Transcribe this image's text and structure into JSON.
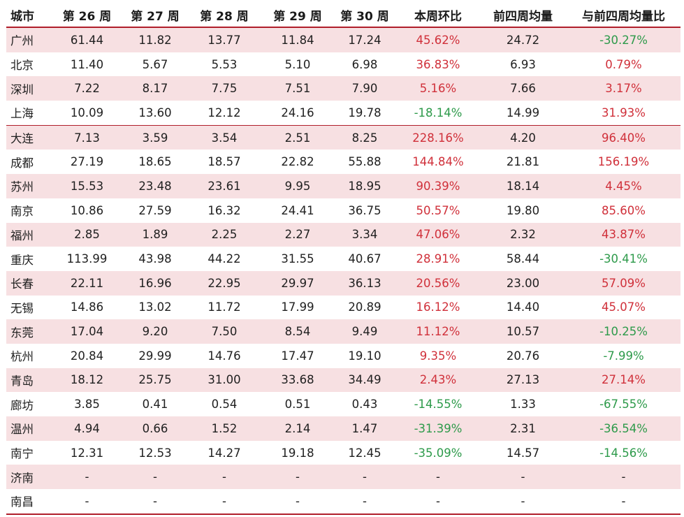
{
  "headers": [
    "城市",
    "第 26 周",
    "第 27 周",
    "第 28 周",
    "第 29 周",
    "第 30 周",
    "本周环比",
    "前四周均量",
    "与前四周均量比"
  ],
  "colors": {
    "positive": "#d0303a",
    "negative": "#2d9a4a",
    "shade": "#f7e0e2",
    "rule": "#b01e2a"
  },
  "rows": [
    [
      "广州",
      "61.44",
      "11.82",
      "13.77",
      "11.84",
      "17.24",
      "45.62%",
      "24.72",
      "-30.27%"
    ],
    [
      "北京",
      "11.40",
      "5.67",
      "5.53",
      "5.10",
      "6.98",
      "36.83%",
      "6.93",
      "0.79%"
    ],
    [
      "深圳",
      "7.22",
      "8.17",
      "7.75",
      "7.51",
      "7.90",
      "5.16%",
      "7.66",
      "3.17%"
    ],
    [
      "上海",
      "10.09",
      "13.60",
      "12.12",
      "24.16",
      "19.78",
      "-18.14%",
      "14.99",
      "31.93%"
    ],
    [
      "大连",
      "7.13",
      "3.59",
      "3.54",
      "2.51",
      "8.25",
      "228.16%",
      "4.20",
      "96.40%"
    ],
    [
      "成都",
      "27.19",
      "18.65",
      "18.57",
      "22.82",
      "55.88",
      "144.84%",
      "21.81",
      "156.19%"
    ],
    [
      "苏州",
      "15.53",
      "23.48",
      "23.61",
      "9.95",
      "18.95",
      "90.39%",
      "18.14",
      "4.45%"
    ],
    [
      "南京",
      "10.86",
      "27.59",
      "16.32",
      "24.41",
      "36.75",
      "50.57%",
      "19.80",
      "85.60%"
    ],
    [
      "福州",
      "2.85",
      "1.89",
      "2.25",
      "2.27",
      "3.34",
      "47.06%",
      "2.32",
      "43.87%"
    ],
    [
      "重庆",
      "113.99",
      "43.98",
      "44.22",
      "31.55",
      "40.67",
      "28.91%",
      "58.44",
      "-30.41%"
    ],
    [
      "长春",
      "22.11",
      "16.96",
      "22.95",
      "29.97",
      "36.13",
      "20.56%",
      "23.00",
      "57.09%"
    ],
    [
      "无锡",
      "14.86",
      "13.02",
      "11.72",
      "17.99",
      "20.89",
      "16.12%",
      "14.40",
      "45.07%"
    ],
    [
      "东莞",
      "17.04",
      "9.20",
      "7.50",
      "8.54",
      "9.49",
      "11.12%",
      "10.57",
      "-10.25%"
    ],
    [
      "杭州",
      "20.84",
      "29.99",
      "14.76",
      "17.47",
      "19.10",
      "9.35%",
      "20.76",
      "-7.99%"
    ],
    [
      "青岛",
      "18.12",
      "25.75",
      "31.00",
      "33.68",
      "34.49",
      "2.43%",
      "27.13",
      "27.14%"
    ],
    [
      "廊坊",
      "3.85",
      "0.41",
      "0.54",
      "0.51",
      "0.43",
      "-14.55%",
      "1.33",
      "-67.55%"
    ],
    [
      "温州",
      "4.94",
      "0.66",
      "1.52",
      "2.14",
      "1.47",
      "-31.39%",
      "2.31",
      "-36.54%"
    ],
    [
      "南宁",
      "12.31",
      "12.53",
      "14.27",
      "19.18",
      "12.45",
      "-35.09%",
      "14.57",
      "-14.56%"
    ],
    [
      "济南",
      "-",
      "-",
      "-",
      "-",
      "-",
      "-",
      "-",
      "-"
    ],
    [
      "南昌",
      "-",
      "-",
      "-",
      "-",
      "-",
      "-",
      "-",
      "-"
    ]
  ]
}
